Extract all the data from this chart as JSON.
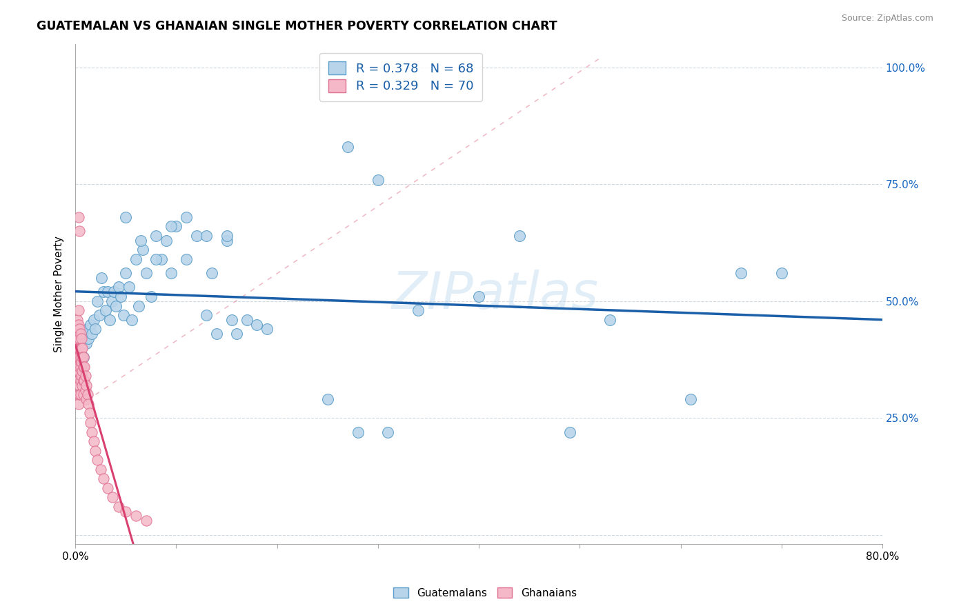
{
  "title": "GUATEMALAN VS GHANAIAN SINGLE MOTHER POVERTY CORRELATION CHART",
  "source": "Source: ZipAtlas.com",
  "ylabel": "Single Mother Poverty",
  "xlim": [
    0.0,
    0.8
  ],
  "ylim": [
    -0.02,
    1.05
  ],
  "ytick_values": [
    0.0,
    0.25,
    0.5,
    0.75,
    1.0
  ],
  "ytick_labels_right": [
    "",
    "25.0%",
    "50.0%",
    "75.0%",
    "100.0%"
  ],
  "xtick_show": [
    0.0,
    0.8
  ],
  "guatemalan_color_face": "#b8d4ea",
  "guatemalan_color_edge": "#5b9ec9",
  "ghanaian_color_face": "#f4b8c8",
  "ghanaian_color_edge": "#e07090",
  "trendline_blue": "#1a5fa8",
  "trendline_pink": "#d94070",
  "grid_color": "#d0d8e0",
  "watermark": "ZIPatlas",
  "guatemalan_x": [
    0.004,
    0.006,
    0.008,
    0.01,
    0.011,
    0.012,
    0.013,
    0.015,
    0.016,
    0.018,
    0.02,
    0.022,
    0.024,
    0.026,
    0.028,
    0.03,
    0.032,
    0.034,
    0.036,
    0.038,
    0.04,
    0.043,
    0.045,
    0.048,
    0.05,
    0.053,
    0.056,
    0.06,
    0.063,
    0.067,
    0.07,
    0.075,
    0.08,
    0.085,
    0.09,
    0.095,
    0.1,
    0.11,
    0.12,
    0.13,
    0.135,
    0.14,
    0.15,
    0.155,
    0.16,
    0.17,
    0.18,
    0.19,
    0.05,
    0.065,
    0.08,
    0.095,
    0.11,
    0.13,
    0.15,
    0.25,
    0.28,
    0.31,
    0.34,
    0.4,
    0.44,
    0.49,
    0.53,
    0.61,
    0.66,
    0.7,
    0.27,
    0.3
  ],
  "guatemalan_y": [
    0.4,
    0.41,
    0.38,
    0.43,
    0.41,
    0.44,
    0.42,
    0.45,
    0.43,
    0.46,
    0.44,
    0.5,
    0.47,
    0.55,
    0.52,
    0.48,
    0.52,
    0.46,
    0.5,
    0.52,
    0.49,
    0.53,
    0.51,
    0.47,
    0.56,
    0.53,
    0.46,
    0.59,
    0.49,
    0.61,
    0.56,
    0.51,
    0.64,
    0.59,
    0.63,
    0.56,
    0.66,
    0.59,
    0.64,
    0.47,
    0.56,
    0.43,
    0.63,
    0.46,
    0.43,
    0.46,
    0.45,
    0.44,
    0.68,
    0.63,
    0.59,
    0.66,
    0.68,
    0.64,
    0.64,
    0.29,
    0.22,
    0.22,
    0.48,
    0.51,
    0.64,
    0.22,
    0.46,
    0.29,
    0.56,
    0.56,
    0.83,
    0.76
  ],
  "ghanaian_x": [
    0.001,
    0.001,
    0.001,
    0.001,
    0.001,
    0.002,
    0.002,
    0.002,
    0.002,
    0.002,
    0.002,
    0.002,
    0.003,
    0.003,
    0.003,
    0.003,
    0.003,
    0.003,
    0.003,
    0.003,
    0.003,
    0.004,
    0.004,
    0.004,
    0.004,
    0.004,
    0.004,
    0.004,
    0.005,
    0.005,
    0.005,
    0.005,
    0.005,
    0.005,
    0.006,
    0.006,
    0.006,
    0.006,
    0.007,
    0.007,
    0.007,
    0.007,
    0.008,
    0.008,
    0.008,
    0.008,
    0.009,
    0.009,
    0.01,
    0.01,
    0.011,
    0.011,
    0.012,
    0.013,
    0.014,
    0.015,
    0.016,
    0.018,
    0.02,
    0.022,
    0.025,
    0.028,
    0.032,
    0.037,
    0.043,
    0.05,
    0.06,
    0.07,
    0.003,
    0.004
  ],
  "ghanaian_y": [
    0.4,
    0.38,
    0.35,
    0.42,
    0.37,
    0.45,
    0.43,
    0.38,
    0.36,
    0.41,
    0.46,
    0.33,
    0.45,
    0.43,
    0.4,
    0.38,
    0.35,
    0.33,
    0.3,
    0.28,
    0.48,
    0.44,
    0.42,
    0.4,
    0.38,
    0.36,
    0.32,
    0.3,
    0.43,
    0.4,
    0.38,
    0.36,
    0.33,
    0.3,
    0.42,
    0.4,
    0.37,
    0.34,
    0.4,
    0.38,
    0.35,
    0.32,
    0.38,
    0.36,
    0.33,
    0.3,
    0.36,
    0.33,
    0.34,
    0.31,
    0.32,
    0.29,
    0.3,
    0.28,
    0.26,
    0.24,
    0.22,
    0.2,
    0.18,
    0.16,
    0.14,
    0.12,
    0.1,
    0.08,
    0.06,
    0.05,
    0.04,
    0.03,
    0.68,
    0.65
  ],
  "legend_label_guat": "R = 0.378   N = 68",
  "legend_label_ghan": "R = 0.329   N = 70"
}
